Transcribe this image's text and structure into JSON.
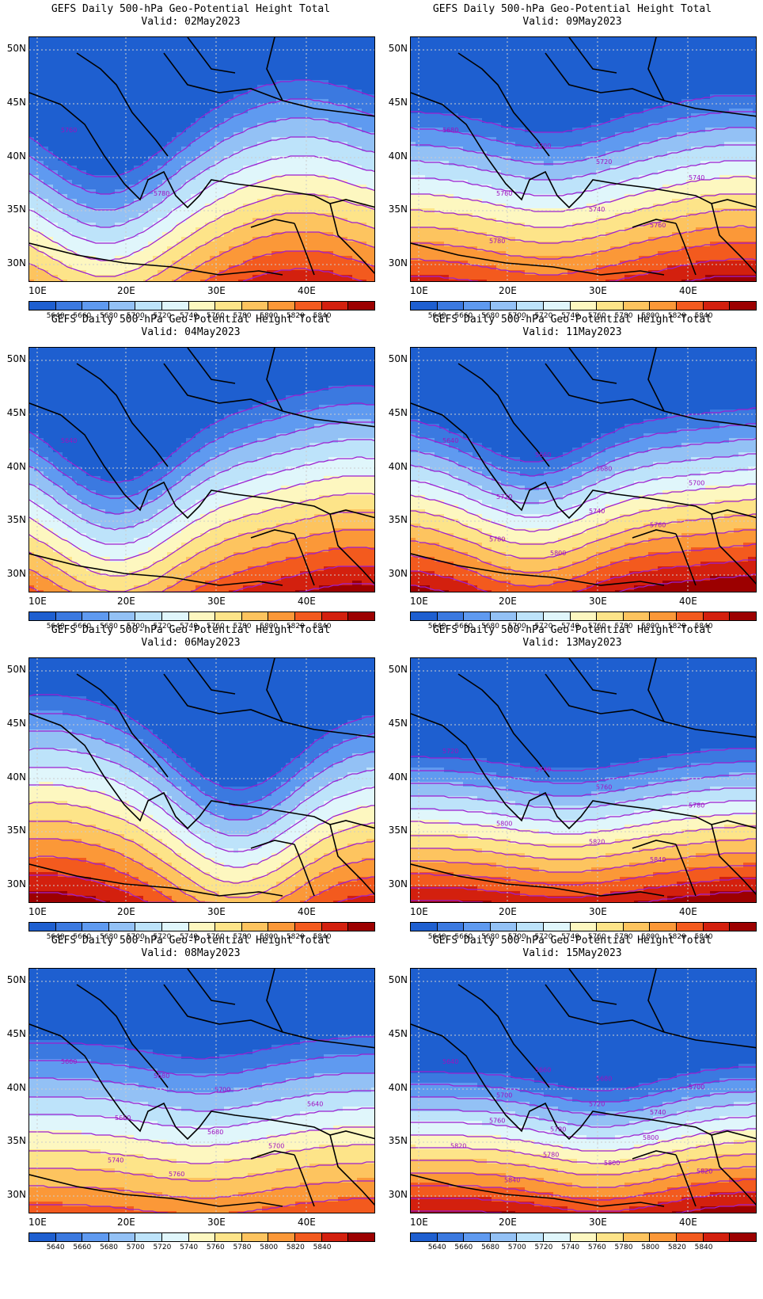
{
  "colorbar": {
    "labels": [
      "5640",
      "5660",
      "5680",
      "5700",
      "5720",
      "5740",
      "5760",
      "5780",
      "5800",
      "5820",
      "5840"
    ],
    "colors": [
      "#1e5fd0",
      "#3b79e0",
      "#5f9af0",
      "#93c1f5",
      "#bde3fa",
      "#e0f6fb",
      "#fdf7c0",
      "#fde489",
      "#fdc45f",
      "#fb9838",
      "#f35a1e",
      "#d3200e",
      "#9c0000"
    ]
  },
  "axes": {
    "lat_labels": [
      "50N",
      "45N",
      "40N",
      "35N",
      "30N"
    ],
    "lon_labels": [
      "10E",
      "20E",
      "30E",
      "40E"
    ]
  },
  "panels": [
    {
      "title": "GEFS Daily 500-hPa Geo-Potential Height Total",
      "valid": "Valid: 02May2023",
      "contour_labels": [
        "5760",
        "5780"
      ]
    },
    {
      "title": "GEFS Daily 500-hPa Geo-Potential Height Total",
      "valid": "Valid: 09May2023",
      "contour_labels": [
        "5680",
        "5700",
        "5720",
        "5740",
        "5760",
        "5740",
        "5760",
        "5780"
      ]
    },
    {
      "title": "GEFS Daily 500-hPa Geo-Potential Height Total",
      "valid": "Valid: 04May2023",
      "contour_labels": [
        "5640"
      ]
    },
    {
      "title": "GEFS Daily 500-hPa Geo-Potential Height Total",
      "valid": "Valid: 11May2023",
      "contour_labels": [
        "5640",
        "5660",
        "5680",
        "5700",
        "5720",
        "5740",
        "5760",
        "5780",
        "5800"
      ]
    },
    {
      "title": "GEFS Daily 500-hPa Geo-Potential Height Total",
      "valid": "Valid: 06May2023",
      "contour_labels": []
    },
    {
      "title": "GEFS Daily 500-hPa Geo-Potential Height Total",
      "valid": "Valid: 13May2023",
      "contour_labels": [
        "5720",
        "5740",
        "5760",
        "5780",
        "5800",
        "5820",
        "5840"
      ]
    },
    {
      "title": "GEFS Daily 500-hPa Geo-Potential Height Total",
      "valid": "Valid: 08May2023",
      "contour_labels": [
        "5660",
        "5680",
        "5700",
        "5640",
        "5660",
        "5680",
        "5700",
        "5740",
        "5760"
      ]
    },
    {
      "title": "GEFS Daily 500-hPa Geo-Potential Height Total",
      "valid": "Valid: 15May2023",
      "contour_labels": [
        "5640",
        "5660",
        "5680",
        "5700",
        "5700",
        "5720",
        "5740",
        "5760",
        "5780",
        "5800",
        "5820",
        "5780",
        "5800",
        "5820",
        "5840"
      ]
    }
  ]
}
